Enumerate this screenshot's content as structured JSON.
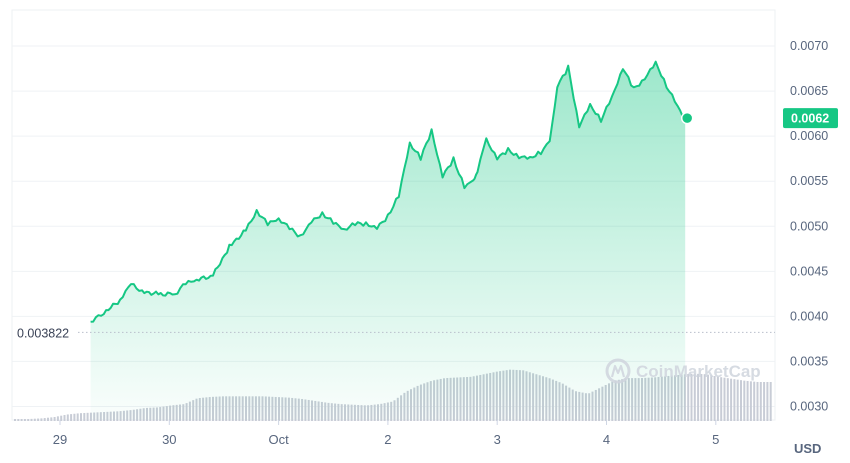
{
  "chart_data": {
    "type": "area",
    "x_labels": [
      "29",
      "30",
      "Oct",
      "2",
      "3",
      "4",
      "5"
    ],
    "y_ticks": [
      "0.0070",
      "0.0065",
      "0.0060",
      "0.0055",
      "0.0050",
      "0.0045",
      "0.0040",
      "0.0035",
      "0.0030"
    ],
    "y_tick_values": [
      0.007,
      0.0065,
      0.006,
      0.0055,
      0.005,
      0.0045,
      0.004,
      0.0035,
      0.003
    ],
    "ylim": [
      0.00285,
      0.0074
    ],
    "unit": "USD",
    "baseline": {
      "value": 0.003822,
      "label": "0.003822"
    },
    "current_price": {
      "value": 0.0062,
      "label": "0.0062"
    },
    "watermark": "CoinMarketCap",
    "series": [
      {
        "x_day": [
          0.28,
          0.4,
          0.55,
          0.65,
          0.75,
          0.9,
          1.05,
          1.15,
          1.25,
          1.4,
          1.55,
          1.7,
          1.8,
          1.9,
          2.0,
          2.1,
          2.2,
          2.3,
          2.4,
          2.5,
          2.6,
          2.7,
          2.8,
          2.9,
          3.0,
          3.1,
          3.2,
          3.3,
          3.4,
          3.5,
          3.6,
          3.7,
          3.78,
          3.82,
          3.9,
          4.0,
          4.1,
          4.2,
          4.3,
          4.4,
          4.48,
          4.55,
          4.65,
          4.75,
          4.85,
          4.95,
          5.05,
          5.15,
          5.25,
          5.35,
          5.45,
          5.55,
          5.65,
          5.72
        ],
        "price": [
          0.00395,
          0.00403,
          0.00418,
          0.00435,
          0.00428,
          0.00425,
          0.00425,
          0.00437,
          0.0044,
          0.00445,
          0.00478,
          0.00496,
          0.00518,
          0.00503,
          0.00508,
          0.00497,
          0.00488,
          0.00505,
          0.00515,
          0.00505,
          0.00496,
          0.00502,
          0.00502,
          0.00498,
          0.00512,
          0.00535,
          0.00592,
          0.00575,
          0.00605,
          0.00555,
          0.00575,
          0.00545,
          0.0055,
          0.00562,
          0.00595,
          0.00575,
          0.00585,
          0.00578,
          0.00576,
          0.00582,
          0.00592,
          0.00655,
          0.00676,
          0.00612,
          0.00635,
          0.00618,
          0.00642,
          0.00675,
          0.00652,
          0.00665,
          0.00682,
          0.00656,
          0.00632,
          0.00618
        ]
      }
    ],
    "volume_relative": [
      0.03,
      0.03,
      0.04,
      0.06,
      0.1,
      0.12,
      0.13,
      0.14,
      0.15,
      0.17,
      0.2,
      0.21,
      0.24,
      0.26,
      0.35,
      0.37,
      0.38,
      0.38,
      0.38,
      0.38,
      0.37,
      0.36,
      0.34,
      0.31,
      0.28,
      0.26,
      0.25,
      0.24,
      0.26,
      0.3,
      0.45,
      0.55,
      0.62,
      0.66,
      0.67,
      0.68,
      0.72,
      0.76,
      0.79,
      0.78,
      0.72,
      0.66,
      0.58,
      0.46,
      0.42,
      0.52,
      0.62,
      0.66,
      0.66,
      0.67,
      0.69,
      0.71,
      0.73,
      0.72,
      0.68,
      0.65,
      0.62,
      0.6,
      0.6
    ],
    "grid": true,
    "line_color": "#16c784",
    "volume_color": "#c8ccd6"
  }
}
